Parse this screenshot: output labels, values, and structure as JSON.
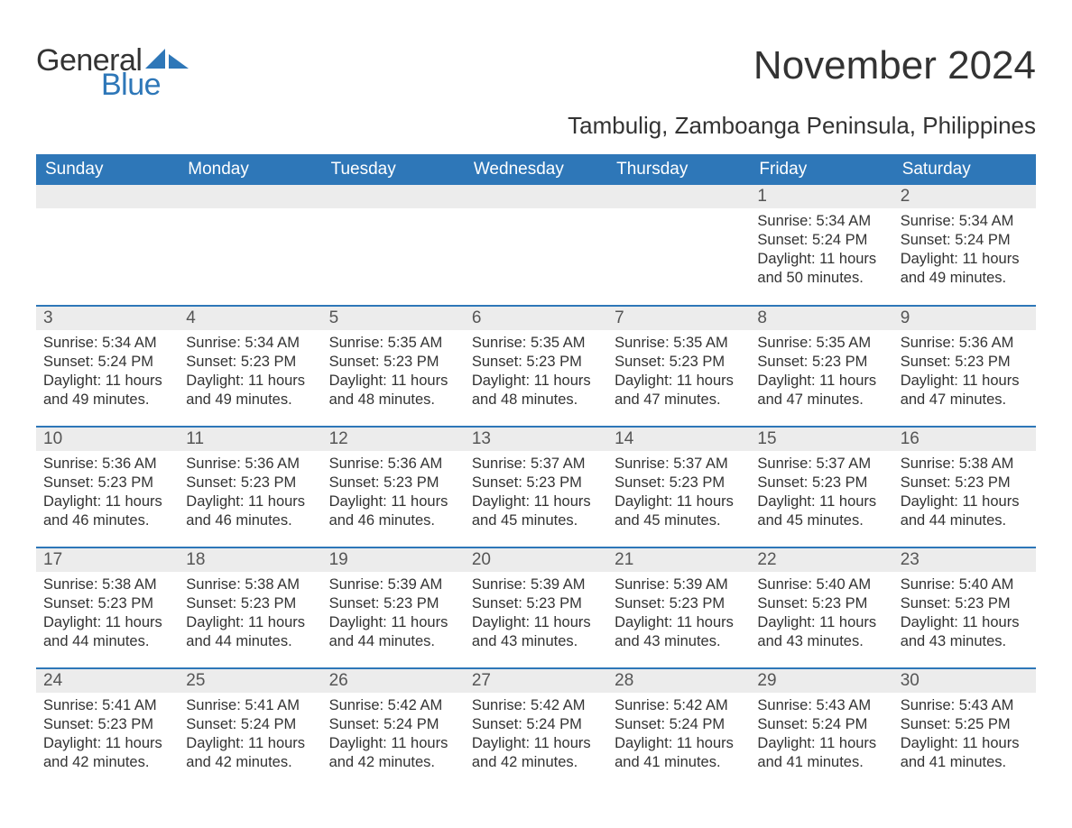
{
  "logo": {
    "text1": "General",
    "text2": "Blue",
    "icon_color": "#2e77b8"
  },
  "title": "November 2024",
  "subtitle": "Tambulig, Zamboanga Peninsula, Philippines",
  "colors": {
    "header_bg": "#2e77b8",
    "header_text": "#ffffff",
    "daynum_bg": "#ececec",
    "row_border": "#2e77b8",
    "body_text": "#333333"
  },
  "weekdays": [
    "Sunday",
    "Monday",
    "Tuesday",
    "Wednesday",
    "Thursday",
    "Friday",
    "Saturday"
  ],
  "weeks": [
    [
      null,
      null,
      null,
      null,
      null,
      {
        "n": 1,
        "sunrise": "5:34 AM",
        "sunset": "5:24 PM",
        "daylight": "11 hours and 50 minutes."
      },
      {
        "n": 2,
        "sunrise": "5:34 AM",
        "sunset": "5:24 PM",
        "daylight": "11 hours and 49 minutes."
      }
    ],
    [
      {
        "n": 3,
        "sunrise": "5:34 AM",
        "sunset": "5:24 PM",
        "daylight": "11 hours and 49 minutes."
      },
      {
        "n": 4,
        "sunrise": "5:34 AM",
        "sunset": "5:23 PM",
        "daylight": "11 hours and 49 minutes."
      },
      {
        "n": 5,
        "sunrise": "5:35 AM",
        "sunset": "5:23 PM",
        "daylight": "11 hours and 48 minutes."
      },
      {
        "n": 6,
        "sunrise": "5:35 AM",
        "sunset": "5:23 PM",
        "daylight": "11 hours and 48 minutes."
      },
      {
        "n": 7,
        "sunrise": "5:35 AM",
        "sunset": "5:23 PM",
        "daylight": "11 hours and 47 minutes."
      },
      {
        "n": 8,
        "sunrise": "5:35 AM",
        "sunset": "5:23 PM",
        "daylight": "11 hours and 47 minutes."
      },
      {
        "n": 9,
        "sunrise": "5:36 AM",
        "sunset": "5:23 PM",
        "daylight": "11 hours and 47 minutes."
      }
    ],
    [
      {
        "n": 10,
        "sunrise": "5:36 AM",
        "sunset": "5:23 PM",
        "daylight": "11 hours and 46 minutes."
      },
      {
        "n": 11,
        "sunrise": "5:36 AM",
        "sunset": "5:23 PM",
        "daylight": "11 hours and 46 minutes."
      },
      {
        "n": 12,
        "sunrise": "5:36 AM",
        "sunset": "5:23 PM",
        "daylight": "11 hours and 46 minutes."
      },
      {
        "n": 13,
        "sunrise": "5:37 AM",
        "sunset": "5:23 PM",
        "daylight": "11 hours and 45 minutes."
      },
      {
        "n": 14,
        "sunrise": "5:37 AM",
        "sunset": "5:23 PM",
        "daylight": "11 hours and 45 minutes."
      },
      {
        "n": 15,
        "sunrise": "5:37 AM",
        "sunset": "5:23 PM",
        "daylight": "11 hours and 45 minutes."
      },
      {
        "n": 16,
        "sunrise": "5:38 AM",
        "sunset": "5:23 PM",
        "daylight": "11 hours and 44 minutes."
      }
    ],
    [
      {
        "n": 17,
        "sunrise": "5:38 AM",
        "sunset": "5:23 PM",
        "daylight": "11 hours and 44 minutes."
      },
      {
        "n": 18,
        "sunrise": "5:38 AM",
        "sunset": "5:23 PM",
        "daylight": "11 hours and 44 minutes."
      },
      {
        "n": 19,
        "sunrise": "5:39 AM",
        "sunset": "5:23 PM",
        "daylight": "11 hours and 44 minutes."
      },
      {
        "n": 20,
        "sunrise": "5:39 AM",
        "sunset": "5:23 PM",
        "daylight": "11 hours and 43 minutes."
      },
      {
        "n": 21,
        "sunrise": "5:39 AM",
        "sunset": "5:23 PM",
        "daylight": "11 hours and 43 minutes."
      },
      {
        "n": 22,
        "sunrise": "5:40 AM",
        "sunset": "5:23 PM",
        "daylight": "11 hours and 43 minutes."
      },
      {
        "n": 23,
        "sunrise": "5:40 AM",
        "sunset": "5:23 PM",
        "daylight": "11 hours and 43 minutes."
      }
    ],
    [
      {
        "n": 24,
        "sunrise": "5:41 AM",
        "sunset": "5:23 PM",
        "daylight": "11 hours and 42 minutes."
      },
      {
        "n": 25,
        "sunrise": "5:41 AM",
        "sunset": "5:24 PM",
        "daylight": "11 hours and 42 minutes."
      },
      {
        "n": 26,
        "sunrise": "5:42 AM",
        "sunset": "5:24 PM",
        "daylight": "11 hours and 42 minutes."
      },
      {
        "n": 27,
        "sunrise": "5:42 AM",
        "sunset": "5:24 PM",
        "daylight": "11 hours and 42 minutes."
      },
      {
        "n": 28,
        "sunrise": "5:42 AM",
        "sunset": "5:24 PM",
        "daylight": "11 hours and 41 minutes."
      },
      {
        "n": 29,
        "sunrise": "5:43 AM",
        "sunset": "5:24 PM",
        "daylight": "11 hours and 41 minutes."
      },
      {
        "n": 30,
        "sunrise": "5:43 AM",
        "sunset": "5:25 PM",
        "daylight": "11 hours and 41 minutes."
      }
    ]
  ],
  "labels": {
    "sunrise": "Sunrise:",
    "sunset": "Sunset:",
    "daylight": "Daylight:"
  }
}
